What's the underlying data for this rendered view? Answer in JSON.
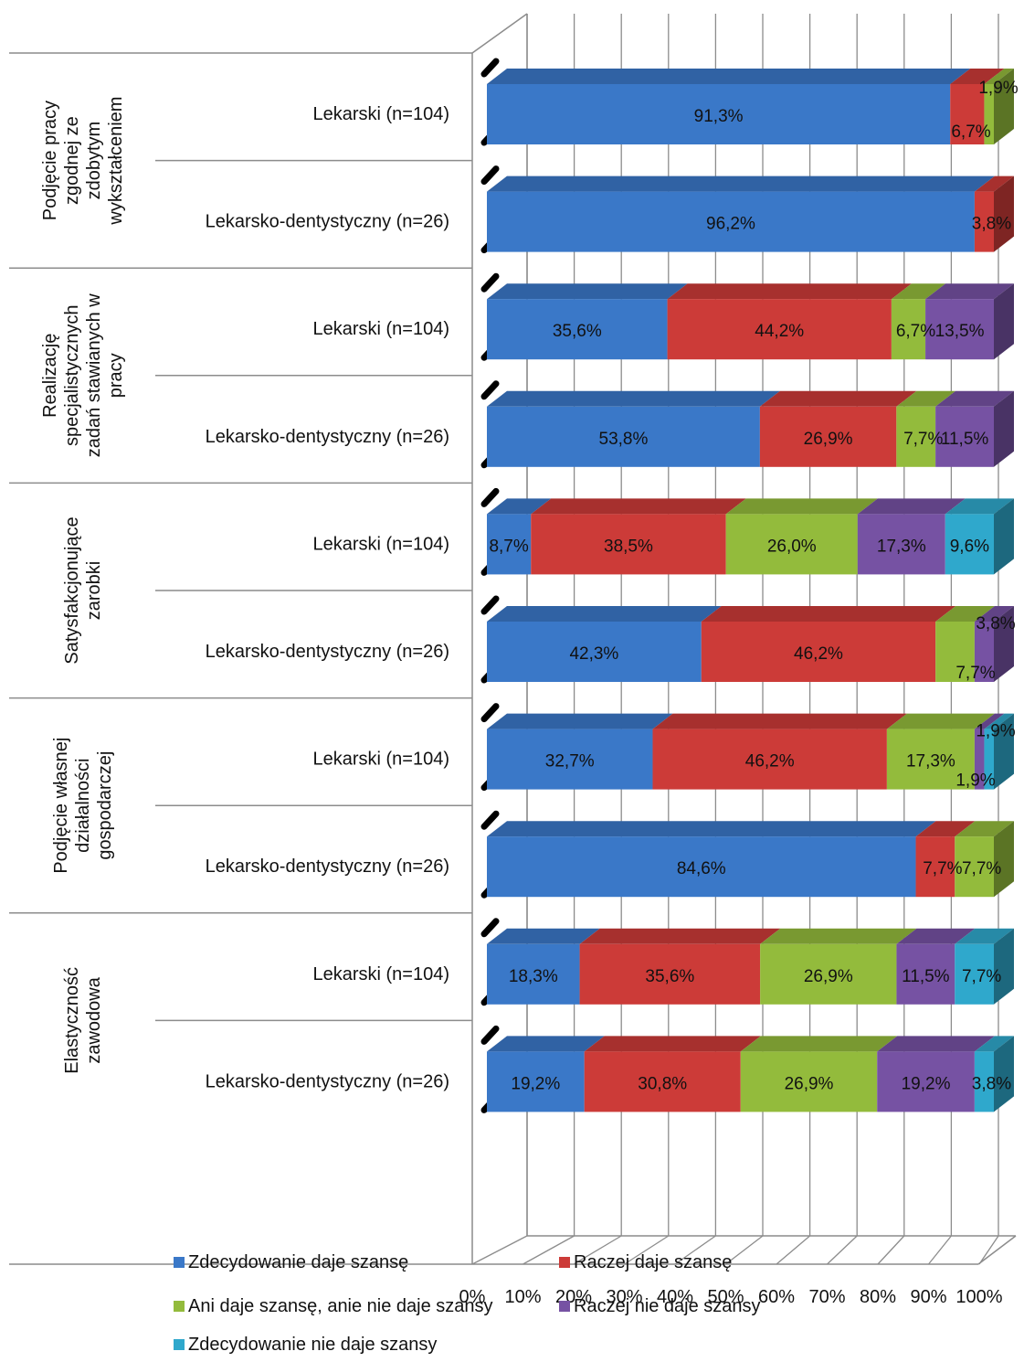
{
  "chart_data": {
    "type": "bar",
    "orientation": "horizontal",
    "stacked": "100%",
    "three_d": true,
    "grid": true,
    "legend_position": "bottom",
    "title": "",
    "xlabel": "",
    "ylabel": "",
    "xlim": [
      0,
      100
    ],
    "x_ticks": [
      "0%",
      "10%",
      "20%",
      "30%",
      "40%",
      "50%",
      "60%",
      "70%",
      "80%",
      "90%",
      "100%"
    ],
    "groups": [
      {
        "label": "Podjęcie pracy zgodnej ze zdobytym wykształceniem",
        "label_lines": [
          "Podjęcie pracy",
          "zgodnej ze",
          "zdobytym",
          "wykształceniem"
        ]
      },
      {
        "label": "Realizację specjalistycznych zadań stawianych w pracy",
        "label_lines": [
          "Realizację",
          "specjalistycznych",
          "zadań stawianych w",
          "pracy"
        ]
      },
      {
        "label": "Satysfakcjonujące zarobki",
        "label_lines": [
          "Satysfakcjonujące",
          "zarobki"
        ]
      },
      {
        "label": "Podjęcie własnej działalności gospodarczej",
        "label_lines": [
          "Podjęcie własnej",
          "działalności",
          "gospodarczej"
        ]
      },
      {
        "label": "Elastyczność zawodowa",
        "label_lines": [
          "Elastyczność",
          "zawodowa"
        ]
      }
    ],
    "categories": [
      "Lekarski (n=104)",
      "Lekarsko-dentystyczny (n=26)",
      "Lekarski (n=104)",
      "Lekarsko-dentystyczny (n=26)",
      "Lekarski (n=104)",
      "Lekarsko-dentystyczny (n=26)",
      "Lekarski (n=104)",
      "Lekarsko-dentystyczny (n=26)",
      "Lekarski (n=104)",
      "Lekarsko-dentystyczny (n=26)"
    ],
    "series": [
      {
        "name": "Zdecydowanie daje szansę",
        "color": "#3A78C8",
        "values": [
          91.3,
          96.2,
          35.6,
          53.8,
          8.7,
          42.3,
          32.7,
          84.6,
          18.3,
          19.2
        ],
        "labels": [
          "91,3%",
          "96,2%",
          "35,6%",
          "53,8%",
          "8,7%",
          "42,3%",
          "32,7%",
          "84,6%",
          "18,3%",
          "19,2%"
        ]
      },
      {
        "name": "Raczej daje szansę",
        "color": "#CC3B38",
        "values": [
          6.7,
          3.8,
          44.2,
          26.9,
          38.5,
          46.2,
          46.2,
          7.7,
          35.6,
          30.8
        ],
        "labels": [
          "6,7%",
          "3,8%",
          "44,2%",
          "26,9%",
          "38,5%",
          "46,2%",
          "46,2%",
          "7,7%",
          "35,6%",
          "30,8%"
        ]
      },
      {
        "name": "Ani daje szansę, anie nie daje szansy",
        "color": "#93BB3C",
        "values": [
          1.9,
          0,
          6.7,
          7.7,
          26.0,
          7.7,
          17.3,
          7.7,
          26.9,
          26.9
        ],
        "labels": [
          "1,9%",
          "",
          "6,7%",
          "7,7%",
          "26,0%",
          "7,7%",
          "17,3%",
          "7,7%",
          "26,9%",
          "26,9%"
        ]
      },
      {
        "name": "Raczej nie daje szansy",
        "color": "#7652A3",
        "values": [
          0,
          0,
          13.5,
          11.5,
          17.3,
          3.8,
          1.9,
          0,
          11.5,
          19.2
        ],
        "labels": [
          "",
          "",
          "13,5%",
          "11,5%",
          "17,3%",
          "3,8%",
          "1,9%",
          "",
          "11,5%",
          "19,2%"
        ]
      },
      {
        "name": "Zdecydowanie nie daje szansy",
        "color": "#2FA8CC",
        "values": [
          0,
          0,
          0,
          0,
          9.6,
          0,
          1.9,
          0,
          7.7,
          3.8
        ],
        "labels": [
          "",
          "",
          "",
          "",
          "9,6%",
          "",
          "1,9%",
          "",
          "7,7%",
          "3,8%"
        ]
      }
    ]
  }
}
